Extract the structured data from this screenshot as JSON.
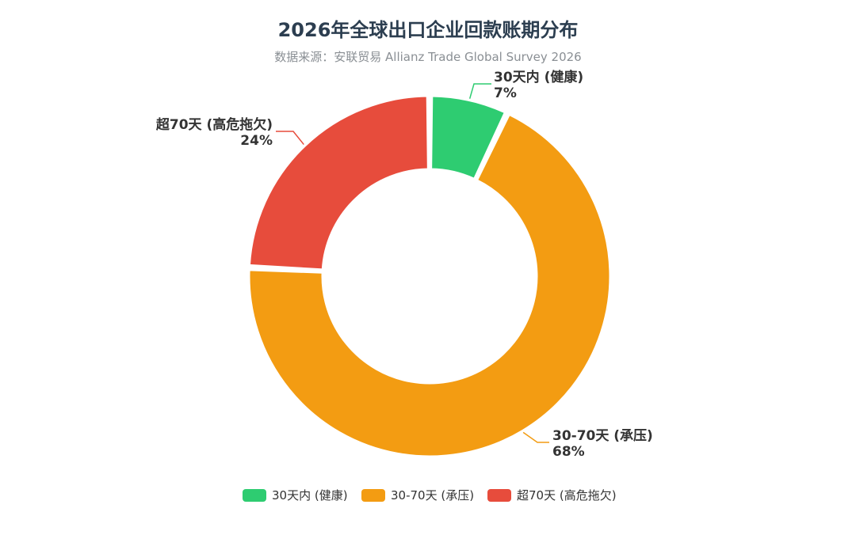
{
  "chart_data": {
    "type": "pie",
    "variant": "donut",
    "title": "2026年全球出口企业回款账期分布",
    "subtitle": "数据来源：安联贸易 Allianz Trade Global Survey 2026",
    "categories": [
      "30天内 (健康)",
      "30-70天 (承压)",
      "超70天 (高危拖欠)"
    ],
    "values": [
      7,
      68,
      24
    ],
    "percent_labels": [
      "7%",
      "68%",
      "24%"
    ],
    "colors": [
      "#2ecc71",
      "#f39c12",
      "#e74c3c"
    ],
    "legend": {
      "position": "bottom",
      "entries": [
        "30天内 (健康)",
        "30-70天 (承压)",
        "超70天 (高危拖欠)"
      ]
    }
  }
}
